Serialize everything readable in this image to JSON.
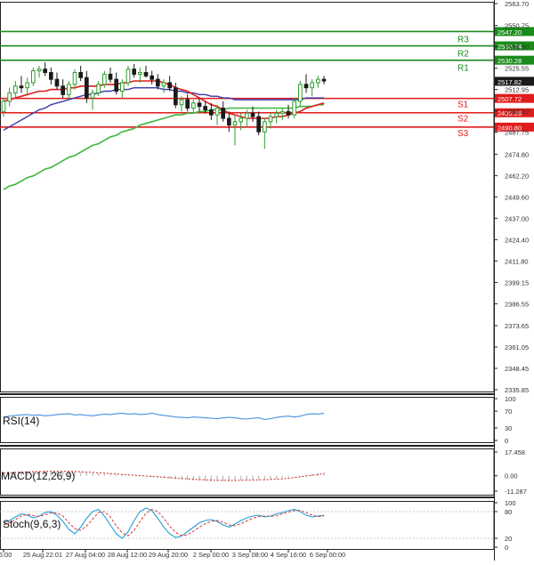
{
  "colors": {
    "background": "#ffffff",
    "bull": "#2e9e2e",
    "bear": "#1a1a1a",
    "resistance": "#1a8a1a",
    "support": "#e01b1b",
    "ma_red": "#e31a1a",
    "ma_blue": "#3a3aa8",
    "ma_green": "#3fb73f",
    "rsi": "#4a90e2",
    "macd_hist": "#b8b8b8",
    "macd_signal": "#cc2222",
    "stoch_k": "#1f9fd6",
    "stoch_d": "#d83a3a",
    "axis_text": "#333333",
    "current_price_bg": "#1a1a1a"
  },
  "chart_data": [
    {
      "type": "candlestick",
      "panel": "price",
      "ylim": [
        2335.85,
        2563.7
      ],
      "y_ticks": [
        "2563.70",
        "2550.75",
        "2538.30",
        "2525.55",
        "2512.95",
        "2500.30",
        "2487.75",
        "2474.80",
        "2462.20",
        "2449.60",
        "2437.00",
        "2424.40",
        "2411.80",
        "2399.15",
        "2386.55",
        "2373.65",
        "2361.05",
        "2348.45",
        "2335.85"
      ],
      "x_ticks": [
        "16:00",
        "25 Aug 22:01",
        "27 Aug 04:00",
        "28 Aug 12:00",
        "29 Aug 20:00",
        "2 Sep 00:00",
        "3 Sep 08:00",
        "4 Sep 16:00",
        "6 Sep 00:00"
      ],
      "candles": [
        [
          2500,
          2508,
          2497,
          2506
        ],
        [
          2506,
          2514,
          2503,
          2511
        ],
        [
          2511,
          2518,
          2508,
          2515
        ],
        [
          2515,
          2521,
          2511,
          2514
        ],
        [
          2514,
          2520,
          2510,
          2517
        ],
        [
          2517,
          2526,
          2515,
          2524
        ],
        [
          2524,
          2527,
          2520,
          2525
        ],
        [
          2525,
          2529,
          2521,
          2523
        ],
        [
          2523,
          2526,
          2516,
          2519
        ],
        [
          2519,
          2523,
          2513,
          2515
        ],
        [
          2515,
          2519,
          2508,
          2510
        ],
        [
          2510,
          2518,
          2507,
          2516
        ],
        [
          2516,
          2525,
          2513,
          2523
        ],
        [
          2523,
          2527,
          2518,
          2520
        ],
        [
          2520,
          2524,
          2505,
          2508
        ],
        [
          2508,
          2513,
          2501,
          2511
        ],
        [
          2511,
          2518,
          2509,
          2516
        ],
        [
          2516,
          2524,
          2514,
          2522
        ],
        [
          2522,
          2526,
          2517,
          2519
        ],
        [
          2519,
          2523,
          2510,
          2512
        ],
        [
          2512,
          2519,
          2508,
          2517
        ],
        [
          2517,
          2527,
          2515,
          2525
        ],
        [
          2525,
          2528,
          2520,
          2522
        ],
        [
          2522,
          2526,
          2517,
          2523
        ],
        [
          2523,
          2527,
          2520,
          2521
        ],
        [
          2521,
          2524,
          2516,
          2519
        ],
        [
          2519,
          2522,
          2513,
          2515
        ],
        [
          2515,
          2519,
          2511,
          2517
        ],
        [
          2517,
          2521,
          2512,
          2514
        ],
        [
          2514,
          2517,
          2502,
          2504
        ],
        [
          2504,
          2509,
          2500,
          2507
        ],
        [
          2507,
          2510,
          2500,
          2502
        ],
        [
          2502,
          2507,
          2499,
          2505
        ],
        [
          2505,
          2508,
          2500,
          2503
        ],
        [
          2503,
          2506,
          2499,
          2501
        ],
        [
          2501,
          2505,
          2495,
          2498
        ],
        [
          2498,
          2504,
          2492,
          2502
        ],
        [
          2502,
          2506,
          2494,
          2496
        ],
        [
          2496,
          2500,
          2488,
          2492
        ],
        [
          2492,
          2498,
          2480,
          2494
        ],
        [
          2494,
          2499,
          2489,
          2496
        ],
        [
          2496,
          2501,
          2491,
          2499
        ],
        [
          2499,
          2503,
          2494,
          2497
        ],
        [
          2497,
          2500,
          2486,
          2488
        ],
        [
          2488,
          2496,
          2478,
          2494
        ],
        [
          2494,
          2499,
          2490,
          2497
        ],
        [
          2497,
          2501,
          2493,
          2499
        ],
        [
          2499,
          2502,
          2495,
          2500
        ],
        [
          2500,
          2504,
          2496,
          2498
        ],
        [
          2498,
          2508,
          2496,
          2506
        ],
        [
          2506,
          2518,
          2503,
          2516
        ],
        [
          2516,
          2522,
          2511,
          2514
        ],
        [
          2514,
          2519,
          2509,
          2517
        ],
        [
          2517,
          2521,
          2514,
          2519
        ],
        [
          2519,
          2521,
          2516,
          2518
        ]
      ],
      "moving_averages": {
        "ma_red": [
          2506,
          2507,
          2508,
          2509,
          2510,
          2511,
          2512,
          2512,
          2513,
          2513,
          2513,
          2514,
          2514,
          2515,
          2515,
          2515,
          2515,
          2516,
          2516,
          2516,
          2517,
          2517,
          2518,
          2518,
          2518,
          2518,
          2518,
          2517,
          2516,
          2514,
          2513,
          2512,
          2510,
          2508,
          2506,
          2504,
          2503,
          2501,
          2499,
          2498,
          2497,
          2496,
          2496,
          2496,
          2496,
          2496,
          2497,
          2497,
          2498,
          2499,
          2500,
          2502,
          2503,
          2504,
          2505
        ],
        "ma_blue": [
          2489,
          2491,
          2493,
          2495,
          2497,
          2499,
          2501,
          2502,
          2504,
          2505,
          2506,
          2507,
          2508,
          2509,
          2510,
          2510,
          2511,
          2512,
          2512,
          2513,
          2513,
          2513,
          2514,
          2514,
          2514,
          2514,
          2514,
          2513,
          2513,
          2512,
          2512,
          2511,
          2511,
          2510,
          2510,
          2509,
          2509,
          2508,
          2508,
          2507,
          2507,
          2507,
          2507,
          2507,
          2507,
          2507,
          2507,
          2507,
          2507,
          2507,
          2507,
          2508,
          2508,
          2508,
          2508
        ],
        "ma_green": [
          2454,
          2456,
          2457,
          2459,
          2461,
          2462,
          2464,
          2466,
          2467,
          2469,
          2471,
          2473,
          2474,
          2476,
          2478,
          2480,
          2481,
          2483,
          2485,
          2486,
          2488,
          2489,
          2490,
          2492,
          2493,
          2494,
          2495,
          2496,
          2497,
          2498,
          2498,
          2499,
          2499,
          2500,
          2500,
          2501,
          2501,
          2501,
          2502,
          2502,
          2502,
          2502,
          2502,
          2502,
          2502,
          2502,
          2502,
          2502,
          2502,
          2502,
          2503,
          2503,
          2503,
          2504,
          2504
        ]
      },
      "levels": [
        {
          "label": "R3",
          "value": 2547.2,
          "price_text": "2547.20",
          "kind": "resistance"
        },
        {
          "label": "R2",
          "value": 2538.74,
          "price_text": "2538.74",
          "kind": "resistance"
        },
        {
          "label": "R1",
          "value": 2530.28,
          "price_text": "2530.28",
          "kind": "resistance"
        },
        {
          "label": "S1",
          "value": 2507.72,
          "price_text": "2507.72",
          "kind": "support"
        },
        {
          "label": "S2",
          "value": 2499.26,
          "price_text": "2499.26",
          "kind": "support"
        },
        {
          "label": "S3",
          "value": 2490.8,
          "price_text": "2490.80",
          "kind": "support"
        }
      ],
      "current_price": {
        "value": 2517.82,
        "text": "2517.82"
      }
    },
    {
      "type": "line",
      "panel": "rsi",
      "title": "RSI(14)",
      "ylim": [
        0,
        100
      ],
      "y_ticks": [
        "100",
        "70",
        "30",
        "0"
      ],
      "values": [
        56,
        58,
        60,
        61,
        62,
        60,
        61,
        59,
        60,
        62,
        63,
        64,
        61,
        62,
        60,
        59,
        61,
        63,
        62,
        64,
        65,
        63,
        64,
        62,
        63,
        65,
        62,
        60,
        58,
        56,
        55,
        54,
        56,
        55,
        54,
        53,
        52,
        54,
        55,
        54,
        52,
        51,
        53,
        54,
        50,
        52,
        55,
        57,
        58,
        56,
        58,
        62,
        64,
        63,
        65
      ]
    },
    {
      "type": "histogram+line",
      "panel": "macd",
      "title": "MACD(12,26,9)",
      "ylim": [
        -11.287,
        17.458
      ],
      "y_ticks": [
        "17.458",
        "0.00",
        "-11.287"
      ],
      "histogram": [
        2.5,
        2.7,
        2.9,
        3.0,
        3.2,
        3.3,
        3.4,
        3.5,
        3.5,
        3.4,
        3.3,
        3.2,
        3.0,
        2.8,
        2.6,
        2.3,
        2.0,
        1.7,
        1.4,
        1.1,
        0.8,
        0.5,
        0.2,
        -0.1,
        -0.4,
        -0.8,
        -1.2,
        -1.6,
        -2.0,
        -2.4,
        -2.8,
        -3.1,
        -3.4,
        -3.6,
        -3.8,
        -3.9,
        -4.0,
        -4.0,
        -3.9,
        -3.8,
        -3.6,
        -3.4,
        -3.2,
        -3.0,
        -2.8,
        -2.5,
        -2.1,
        -1.6,
        -1.0,
        -0.4,
        0.3,
        1.0,
        1.6,
        2.1,
        2.5
      ],
      "signal": [
        2.0,
        2.2,
        2.4,
        2.6,
        2.8,
        3.0,
        3.1,
        3.2,
        3.3,
        3.3,
        3.3,
        3.2,
        3.1,
        2.9,
        2.7,
        2.5,
        2.2,
        1.9,
        1.6,
        1.3,
        1.0,
        0.7,
        0.4,
        0.1,
        -0.2,
        -0.5,
        -0.8,
        -1.1,
        -1.4,
        -1.7,
        -2.0,
        -2.3,
        -2.6,
        -2.8,
        -3.0,
        -3.2,
        -3.3,
        -3.4,
        -3.4,
        -3.4,
        -3.3,
        -3.2,
        -3.1,
        -3.0,
        -2.9,
        -2.7,
        -2.5,
        -2.2,
        -1.8,
        -1.3,
        -0.8,
        -0.2,
        0.4,
        1.0,
        1.5
      ]
    },
    {
      "type": "line",
      "panel": "stoch",
      "title": "Stoch(9,6,3)",
      "ylim": [
        0,
        100
      ],
      "y_ticks": [
        "100",
        "80",
        "20",
        "0"
      ],
      "k": [
        55,
        60,
        68,
        75,
        72,
        66,
        70,
        78,
        80,
        72,
        58,
        40,
        30,
        45,
        65,
        80,
        85,
        70,
        50,
        30,
        20,
        35,
        60,
        80,
        88,
        82,
        65,
        45,
        30,
        22,
        25,
        35,
        45,
        55,
        60,
        62,
        58,
        50,
        45,
        52,
        60,
        66,
        70,
        72,
        68,
        70,
        75,
        78,
        82,
        85,
        80,
        72,
        68,
        70,
        72
      ],
      "d": [
        50,
        55,
        62,
        70,
        74,
        71,
        69,
        73,
        77,
        77,
        70,
        55,
        42,
        38,
        48,
        63,
        78,
        80,
        68,
        48,
        32,
        26,
        38,
        58,
        76,
        85,
        80,
        65,
        47,
        33,
        26,
        28,
        36,
        45,
        53,
        58,
        60,
        56,
        50,
        48,
        53,
        59,
        65,
        69,
        70,
        69,
        71,
        75,
        79,
        82,
        83,
        78,
        72,
        69,
        70
      ]
    }
  ]
}
